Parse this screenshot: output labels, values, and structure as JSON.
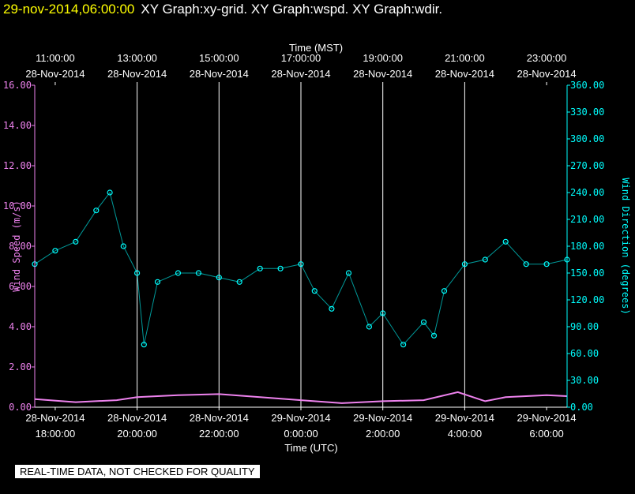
{
  "header": {
    "datetime": "29-nov-2014,06:00:00",
    "graphs": "XY Graph:xy-grid.  XY Graph:wspd.  XY Graph:wdir."
  },
  "notice": "REAL-TIME DATA, NOT CHECKED FOR QUALITY",
  "chart_data": {
    "type": "scatter",
    "title": "",
    "xlabel": "Time (UTC)",
    "x2label": "Time (MST)",
    "ylabel": "Wind Speed (m/s)",
    "y2label": "Wind Direction (degrees)",
    "grid": true,
    "xlim": [
      "2014-11-28T17:30",
      "2014-11-29T06:30"
    ],
    "x_ticks": [
      {
        "date": "28-Nov-2014",
        "time": "18:00:00",
        "mst_date": "28-Nov-2014",
        "mst_time": "11:00:00"
      },
      {
        "date": "28-Nov-2014",
        "time": "20:00:00",
        "mst_date": "28-Nov-2014",
        "mst_time": "13:00:00"
      },
      {
        "date": "28-Nov-2014",
        "time": "22:00:00",
        "mst_date": "28-Nov-2014",
        "mst_time": "15:00:00"
      },
      {
        "date": "29-Nov-2014",
        "time": "0:00:00",
        "mst_date": "28-Nov-2014",
        "mst_time": "17:00:00"
      },
      {
        "date": "29-Nov-2014",
        "time": "2:00:00",
        "mst_date": "28-Nov-2014",
        "mst_time": "19:00:00"
      },
      {
        "date": "29-Nov-2014",
        "time": "4:00:00",
        "mst_date": "28-Nov-2014",
        "mst_time": "21:00:00"
      },
      {
        "date": "29-Nov-2014",
        "time": "6:00:00",
        "mst_date": "28-Nov-2014",
        "mst_time": "23:00:00"
      }
    ],
    "ylim": [
      0,
      16
    ],
    "y_ticks": [
      "0.00",
      "2.00",
      "4.00",
      "6.00",
      "8.00",
      "10.00",
      "12.00",
      "14.00",
      "16.00"
    ],
    "y2lim": [
      0,
      360
    ],
    "y2_ticks": [
      "0.00",
      "30.00",
      "60.00",
      "90.00",
      "120.00",
      "150.00",
      "180.00",
      "210.00",
      "240.00",
      "270.00",
      "300.00",
      "330.00",
      "360.00"
    ],
    "series": [
      {
        "name": "Wind Speed (m/s)",
        "axis": "left",
        "color": "#ee82ee",
        "style": "line",
        "x": [
          "2014-11-28T17:30",
          "2014-11-28T18:30",
          "2014-11-28T19:30",
          "2014-11-28T20:00",
          "2014-11-28T21:00",
          "2014-11-28T22:00",
          "2014-11-28T23:00",
          "2014-11-29T00:00",
          "2014-11-29T01:00",
          "2014-11-29T02:00",
          "2014-11-29T03:00",
          "2014-11-29T03:50",
          "2014-11-29T04:30",
          "2014-11-29T05:00",
          "2014-11-29T06:00",
          "2014-11-29T06:30"
        ],
        "y": [
          0.4,
          0.25,
          0.35,
          0.5,
          0.6,
          0.65,
          0.5,
          0.35,
          0.2,
          0.3,
          0.35,
          0.75,
          0.3,
          0.5,
          0.6,
          0.55
        ]
      },
      {
        "name": "Wind Direction (degrees)",
        "axis": "right",
        "color": "#00ffff",
        "style": "scatter",
        "x": [
          "2014-11-28T17:30",
          "2014-11-28T18:00",
          "2014-11-28T18:30",
          "2014-11-28T19:00",
          "2014-11-28T19:20",
          "2014-11-28T19:40",
          "2014-11-28T20:00",
          "2014-11-28T20:10",
          "2014-11-28T20:30",
          "2014-11-28T21:00",
          "2014-11-28T21:30",
          "2014-11-28T22:00",
          "2014-11-28T22:30",
          "2014-11-28T23:00",
          "2014-11-28T23:30",
          "2014-11-29T00:00",
          "2014-11-29T00:20",
          "2014-11-29T00:45",
          "2014-11-29T01:10",
          "2014-11-29T01:40",
          "2014-11-29T02:00",
          "2014-11-29T02:30",
          "2014-11-29T03:00",
          "2014-11-29T03:15",
          "2014-11-29T03:30",
          "2014-11-29T04:00",
          "2014-11-29T04:30",
          "2014-11-29T05:00",
          "2014-11-29T05:30",
          "2014-11-29T06:00",
          "2014-11-29T06:30"
        ],
        "y": [
          160,
          175,
          185,
          220,
          240,
          180,
          150,
          70,
          140,
          150,
          150,
          145,
          140,
          155,
          155,
          160,
          130,
          110,
          150,
          90,
          105,
          70,
          95,
          80,
          130,
          160,
          165,
          185,
          160,
          160,
          165
        ]
      }
    ]
  }
}
